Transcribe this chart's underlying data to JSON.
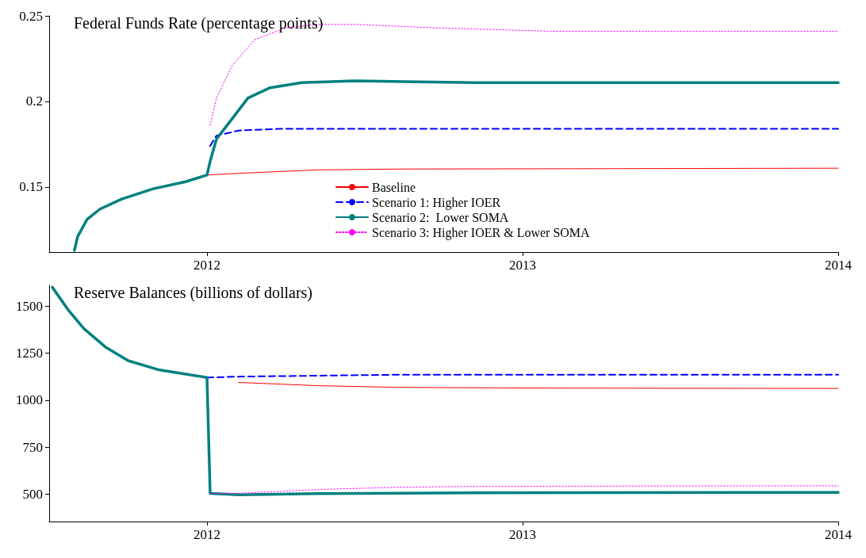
{
  "chart_data": [
    {
      "type": "line",
      "title": "Federal Funds Rate (percentage points)",
      "xlim": [
        2011.5,
        2014
      ],
      "xticks": [
        2012,
        2013,
        2014
      ],
      "ylim": [
        0.112,
        0.25
      ],
      "yticks": [
        0.15,
        0.2,
        0.25
      ],
      "grid": false,
      "legend": "bottom",
      "marker": "none",
      "series": [
        {
          "name": "Baseline",
          "color": "#ff0000",
          "line_style": "solid",
          "x": [
            2012.0,
            2012.1,
            2012.35,
            2012.6,
            2014
          ],
          "values": [
            0.157,
            0.158,
            0.16,
            0.1605,
            0.161
          ]
        },
        {
          "name": "Scenario 1: Higher IOER",
          "color": "#0000ff",
          "line_style": "dashed",
          "x": [
            2012.01,
            2012.03,
            2012.1,
            2012.23,
            2014
          ],
          "values": [
            0.174,
            0.18,
            0.183,
            0.184,
            0.184
          ]
        },
        {
          "name": "Scenario 2:  Lower SOMA",
          "color": "#008080",
          "line_style": "solid",
          "x": [
            2011.58,
            2011.59,
            2011.62,
            2011.66,
            2011.73,
            2011.83,
            2011.93,
            2012.0,
            2012.01,
            2012.03,
            2012.08,
            2012.13,
            2012.2,
            2012.3,
            2012.47,
            2012.85,
            2014
          ],
          "values": [
            0.113,
            0.121,
            0.131,
            0.137,
            0.143,
            0.149,
            0.153,
            0.157,
            0.165,
            0.178,
            0.19,
            0.202,
            0.208,
            0.211,
            0.212,
            0.211,
            0.211
          ]
        },
        {
          "name": "Scenario 3: Higher IOER & Lower SOMA",
          "color": "#ff00ff",
          "line_style": "dotted",
          "x": [
            2012.01,
            2012.03,
            2012.08,
            2012.15,
            2012.25,
            2012.35,
            2012.47,
            2012.72,
            2013.09,
            2014
          ],
          "values": [
            0.186,
            0.202,
            0.221,
            0.236,
            0.243,
            0.245,
            0.245,
            0.243,
            0.241,
            0.241
          ]
        }
      ]
    },
    {
      "type": "line",
      "title": "Reserve Balances (billions of dollars)",
      "xlim": [
        2011.5,
        2014
      ],
      "xticks": [
        2012,
        2013,
        2014
      ],
      "ylim": [
        355,
        1610
      ],
      "yticks": [
        500,
        750,
        1000,
        1250,
        1500
      ],
      "grid": false,
      "legend": false,
      "marker": "none",
      "series": [
        {
          "color": "#ff0000",
          "line_style": "solid",
          "x": [
            2012.1,
            2012.35,
            2012.6,
            2013.09,
            2014
          ],
          "values": [
            1094,
            1077,
            1068,
            1064,
            1062
          ]
        },
        {
          "color": "#0000ff",
          "line_style": "dashed",
          "x": [
            2012.0,
            2012.1,
            2012.6,
            2014
          ],
          "values": [
            1120,
            1125,
            1135,
            1135
          ]
        },
        {
          "color": "#008080",
          "line_style": "solid",
          "x": [
            2011.51,
            2011.56,
            2011.61,
            2011.68,
            2011.75,
            2011.85,
            2012.0,
            2012.01,
            2012.1,
            2012.35,
            2012.85,
            2014
          ],
          "values": [
            1600,
            1480,
            1380,
            1280,
            1210,
            1160,
            1120,
            505,
            497,
            503,
            508,
            510
          ]
        },
        {
          "color": "#ff00ff",
          "line_style": "dotted",
          "x": [
            2012.01,
            2012.1,
            2012.35,
            2012.6,
            2012.85,
            2014
          ],
          "values": [
            505,
            505,
            525,
            537,
            542,
            545
          ]
        }
      ]
    }
  ]
}
